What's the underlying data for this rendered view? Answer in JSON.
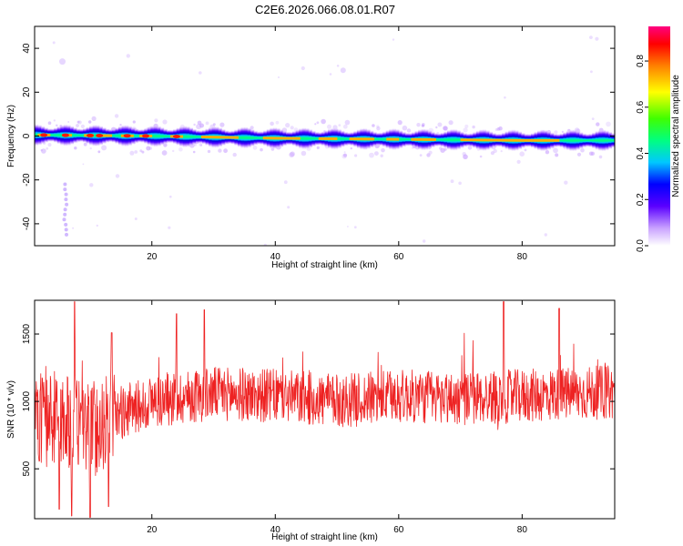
{
  "title": "C2E6.2026.066.08.01.R07",
  "colors": {
    "snr_line": "#ee2222"
  },
  "chart_data": [
    {
      "type": "heatmap",
      "xlabel": "Height of straight line (km)",
      "ylabel": "Frequency (Hz)",
      "xlim": [
        1,
        95
      ],
      "ylim": [
        -50,
        50
      ],
      "x_ticks": [
        20,
        40,
        60,
        80
      ],
      "y_ticks": [
        -40,
        -20,
        0,
        20,
        40
      ],
      "colorbar": {
        "label": "Normalized spectral amplitude",
        "range": [
          0,
          0.95
        ],
        "ticks": [
          0.0,
          0.2,
          0.4,
          0.6,
          0.8
        ],
        "colormap": "rainbow (violet to red)"
      },
      "ridge": {
        "description": "Strong signal band centered near 0 Hz, drifting slightly negative with height",
        "center_hz": [
          [
            1,
            0.5
          ],
          [
            20,
            0
          ],
          [
            40,
            -1
          ],
          [
            60,
            -1.5
          ],
          [
            80,
            -2
          ],
          [
            95,
            -2
          ]
        ],
        "half_width_hz": 2.5
      }
    },
    {
      "type": "line",
      "xlabel": "Height of straight line (km)",
      "ylabel": "SNR (10 * v/v)",
      "xlim": [
        1,
        95
      ],
      "ylim": [
        130,
        1750
      ],
      "x_ticks": [
        20,
        40,
        60,
        80
      ],
      "y_ticks": [
        500,
        1000,
        1500
      ],
      "trend": [
        [
          1,
          880
        ],
        [
          5,
          870
        ],
        [
          9,
          820
        ],
        [
          11,
          800
        ],
        [
          14,
          900
        ],
        [
          20,
          1000
        ],
        [
          30,
          1060
        ],
        [
          40,
          1040
        ],
        [
          50,
          1000
        ],
        [
          60,
          1040
        ],
        [
          70,
          1020
        ],
        [
          80,
          1040
        ],
        [
          90,
          1060
        ],
        [
          95,
          1070
        ]
      ],
      "noise_amplitude": 200,
      "peaks": [
        [
          7.5,
          1740
        ],
        [
          77,
          1740
        ],
        [
          86,
          1690
        ],
        [
          28.5,
          1680
        ],
        [
          24,
          1650
        ],
        [
          13.5,
          1510
        ]
      ],
      "troughs": [
        [
          5,
          200
        ],
        [
          7,
          150
        ],
        [
          10,
          140
        ],
        [
          13,
          220
        ]
      ]
    }
  ]
}
